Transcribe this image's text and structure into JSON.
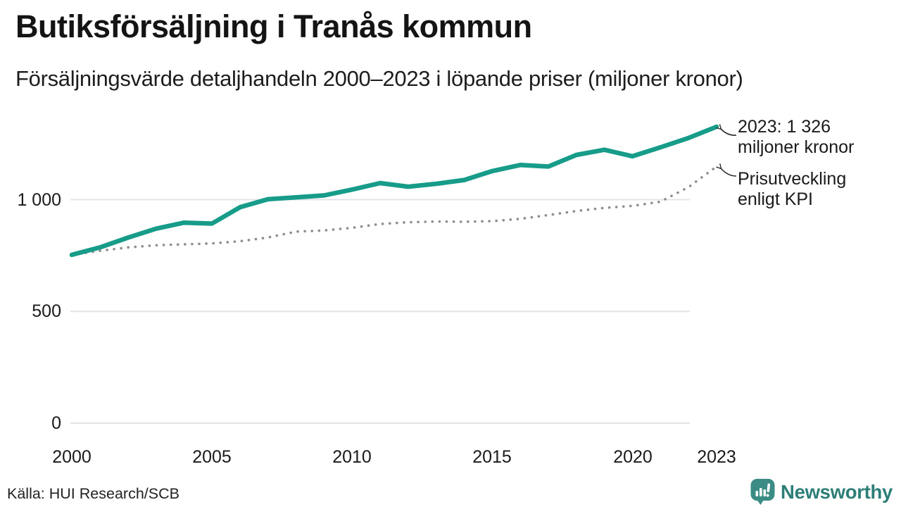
{
  "title": "Butiksförsäljning i Tranås kommun",
  "subtitle": "Försäljningsvärde detaljhandeln 2000–2023 i löpande priser (miljoner kronor)",
  "source": "Källa: HUI Research/SCB",
  "branding": {
    "wordmark": "Newsworthy",
    "logo_icon": "bar-chart-speech-bubble-icon",
    "color": "#2E7E78",
    "icon_color": "#3A8C85"
  },
  "annotations": {
    "sales": {
      "line1": "2023: 1 326",
      "line2": "miljoner kronor"
    },
    "kpi": {
      "line1": "Prisutveckling",
      "line2": "enligt KPI"
    }
  },
  "colors": {
    "sales_line": "#189C8A",
    "kpi_line": "#8E8E8E",
    "gridline": "#E4E4E8",
    "text": "#1A1A1A",
    "arrow": "#2B2B2B"
  },
  "chart_data": {
    "type": "line",
    "title": "Butiksförsäljning i Tranås kommun",
    "subtitle": "Försäljningsvärde detaljhandeln 2000–2023 i löpande priser (miljoner kronor)",
    "x": [
      2000,
      2001,
      2002,
      2003,
      2004,
      2005,
      2006,
      2007,
      2008,
      2009,
      2010,
      2011,
      2012,
      2013,
      2014,
      2015,
      2016,
      2017,
      2018,
      2019,
      2020,
      2021,
      2022,
      2023
    ],
    "series": [
      {
        "name": "Butiksförsäljning i löpande priser (miljoner kronor)",
        "style": "solid",
        "color": "#189C8A",
        "values": [
          753,
          786,
          830,
          870,
          897,
          893,
          966,
          1002,
          1010,
          1019,
          1045,
          1074,
          1058,
          1071,
          1088,
          1128,
          1155,
          1148,
          1200,
          1223,
          1194,
          1234,
          1276,
          1326
        ]
      },
      {
        "name": "Prisutveckling enligt KPI",
        "style": "dotted",
        "color": "#8E8E8E",
        "values": [
          753,
          771,
          786,
          796,
          800,
          804,
          814,
          831,
          857,
          862,
          874,
          891,
          899,
          902,
          901,
          904,
          914,
          931,
          949,
          963,
          972,
          991,
          1056,
          1148
        ]
      }
    ],
    "highlight_value": "2023: 1 326 miljoner kronor",
    "x_ticks": [
      "2000",
      "2005",
      "2010",
      "2015",
      "2020",
      "2023"
    ],
    "x_tick_years": [
      2000,
      2005,
      2010,
      2015,
      2020,
      2023
    ],
    "y_ticks": [
      "0",
      "500",
      "1 000"
    ],
    "y_tick_values": [
      0,
      500,
      1000
    ],
    "xlim": [
      2000,
      2023
    ],
    "ylim": [
      0,
      1400
    ],
    "grid": "horizontal",
    "legend": "inline-annotations"
  }
}
